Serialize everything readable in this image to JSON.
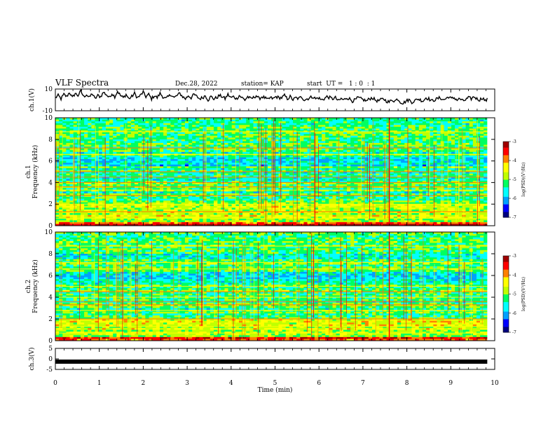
{
  "header": {
    "title": "VLF Spectra",
    "date": "Dec.28, 2022",
    "station": "station= KAP",
    "start": "start  UT =   1 : 0  : 1"
  },
  "chart_data": [
    {
      "id": "ch1_waveform",
      "type": "line",
      "ylabel": "ch.1(V)",
      "ylim": [
        -10,
        10
      ],
      "yticks": [
        "10",
        "-10"
      ],
      "xlim": [
        0,
        10
      ],
      "x_end": 9.83,
      "series": [
        {
          "values": [
            2,
            4,
            1,
            5,
            3,
            7,
            2,
            6,
            4,
            8,
            3,
            5,
            2,
            6,
            1,
            4,
            3,
            7,
            5,
            2,
            6,
            3,
            8,
            4,
            2,
            5,
            1,
            3,
            6,
            2,
            4,
            7,
            3,
            5,
            1,
            4,
            2,
            6,
            3,
            1,
            3,
            5,
            2,
            4,
            6,
            3,
            1,
            4,
            2,
            5,
            3,
            1,
            2,
            4,
            0,
            3,
            1,
            2,
            4,
            3,
            1,
            5,
            2,
            3,
            1,
            4,
            2,
            0,
            3,
            1,
            2,
            4,
            1,
            3,
            2,
            0,
            2,
            1,
            3,
            2,
            2,
            4,
            1,
            3,
            0,
            2,
            1,
            3,
            0,
            1,
            2,
            3,
            1,
            2,
            0,
            1,
            3,
            2,
            1,
            2,
            -1,
            1,
            0,
            2,
            1,
            -1,
            0,
            2,
            1,
            0,
            -1,
            1,
            2,
            0,
            -1,
            0,
            1,
            -1,
            -2,
            0,
            -1,
            1,
            -2,
            -3,
            -1,
            0,
            -2,
            -1,
            1,
            0,
            -1,
            2,
            1,
            -1,
            0,
            1,
            2,
            0,
            1,
            3,
            1,
            2,
            0,
            1,
            -1,
            0,
            2,
            1,
            3,
            1,
            0,
            2,
            -1,
            1
          ]
        }
      ]
    },
    {
      "id": "ch1_spectrogram",
      "type": "heatmap",
      "ylabel": "ch.1",
      "ylabel2": "Frequency  (kHz)",
      "ylim": [
        0,
        10
      ],
      "yticks": [
        "0",
        "2",
        "4",
        "6",
        "8",
        "10"
      ],
      "xlim": [
        0,
        10
      ],
      "x_end": 9.83,
      "colorbar": {
        "label": "log(PSD)(V²/Hz)",
        "range": [
          -7,
          -3
        ],
        "ticks": [
          "-3",
          "-4",
          "-5",
          "-6",
          "-7"
        ]
      }
    },
    {
      "id": "ch2_spectrogram",
      "type": "heatmap",
      "ylabel": "ch.2",
      "ylabel2": "Frequency  (kHz)",
      "ylim": [
        0,
        10
      ],
      "yticks": [
        "0",
        "2",
        "4",
        "6",
        "8",
        "10"
      ],
      "xlim": [
        0,
        10
      ],
      "x_end": 9.83,
      "colorbar": {
        "label": "log(PSD)(V²/Hz)",
        "range": [
          -7,
          -3
        ],
        "ticks": [
          "-3",
          "-4",
          "-5",
          "-6",
          "-7"
        ]
      }
    },
    {
      "id": "ch3_waveform",
      "type": "line",
      "ylabel": "ch.3(V)",
      "ylim": [
        -5,
        5
      ],
      "yticks": [
        "5",
        "0",
        "-5"
      ],
      "xlim": [
        0,
        10
      ],
      "x_end": 9.83,
      "series": [
        {
          "constant": -1.3
        }
      ]
    }
  ],
  "x_axis": {
    "label": "Time  (min)",
    "ticks": [
      "0",
      "1",
      "2",
      "3",
      "4",
      "5",
      "6",
      "7",
      "8",
      "9",
      "10"
    ]
  },
  "colors": {
    "spectrogram_colormap": [
      "#000080",
      "#0000ff",
      "#00a0ff",
      "#00ffff",
      "#00ff60",
      "#c0ff00",
      "#ffff00",
      "#ff8000",
      "#ff0000",
      "#a00000"
    ],
    "line": "#000000"
  }
}
